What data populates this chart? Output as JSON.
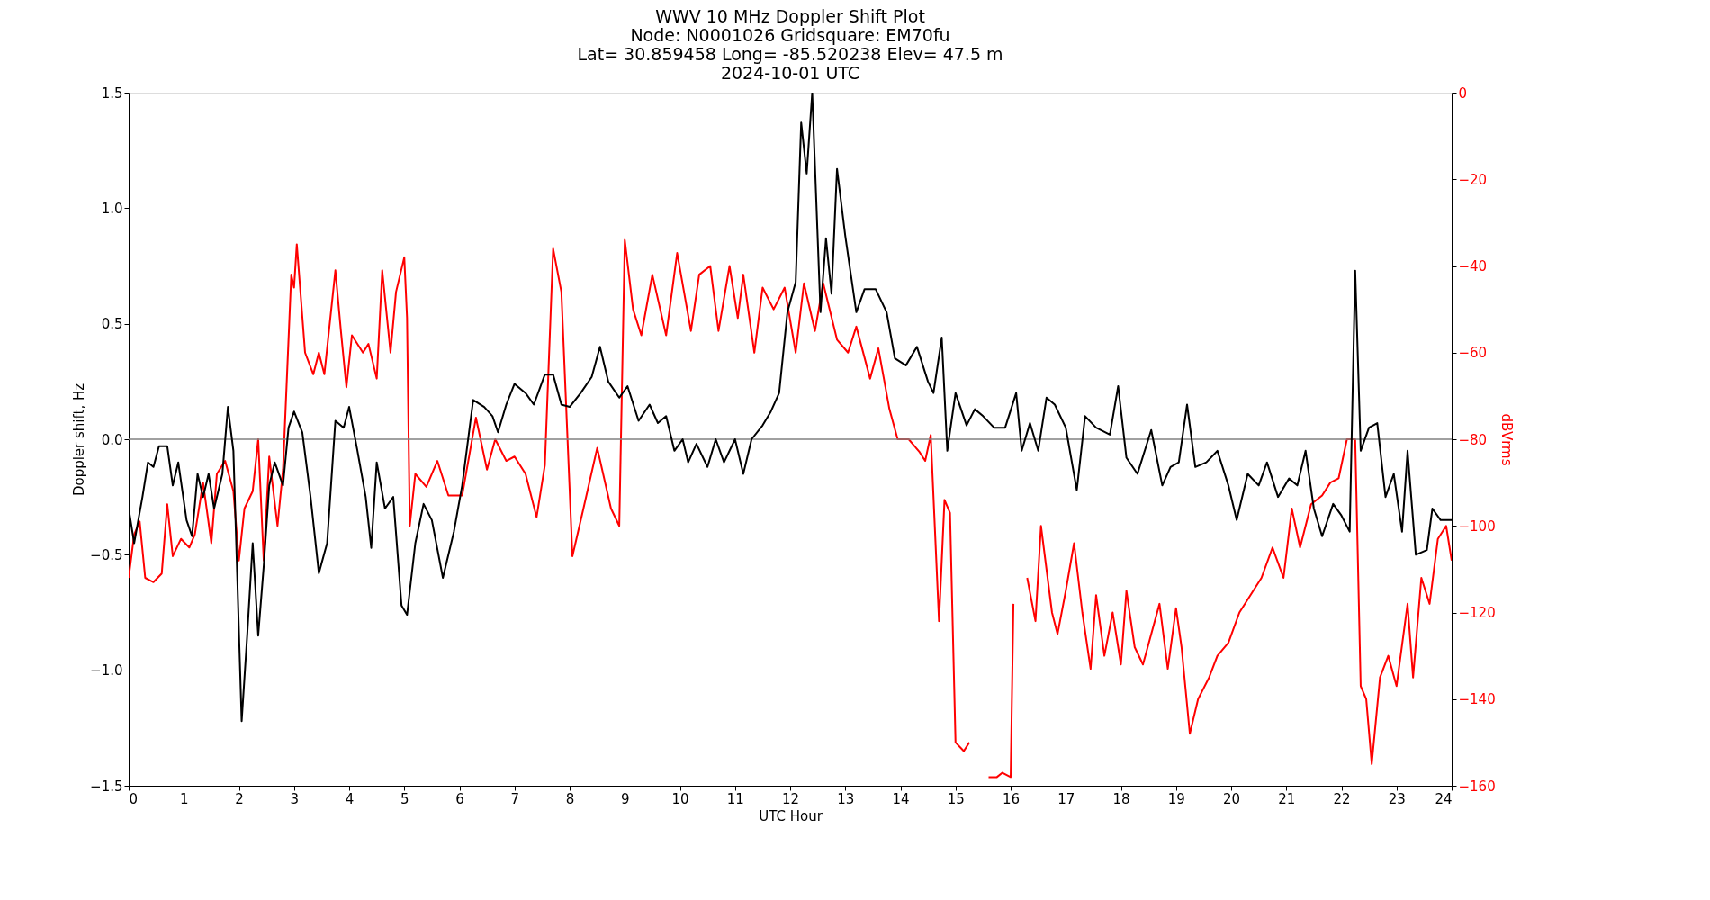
{
  "chart_data": {
    "type": "line",
    "title": "WWV 10 MHz Doppler Shift Plot\nNode:  N0001026     Gridsquare:  EM70fu\nLat= 30.859458    Long= -85.520238    Elev= 47.5 m\n2024-10-01  UTC",
    "xlabel": "UTC Hour",
    "ylabel": "Doppler shift, Hz",
    "y2label": "dBVrms",
    "xlim": [
      0,
      24
    ],
    "xticks": [
      0,
      1,
      2,
      3,
      4,
      5,
      6,
      7,
      8,
      9,
      10,
      11,
      12,
      13,
      14,
      15,
      16,
      17,
      18,
      19,
      20,
      21,
      22,
      23,
      24
    ],
    "ylim": [
      -1.5,
      1.5
    ],
    "yticks": [
      {
        "value": -1.5,
        "label": "−1.5"
      },
      {
        "value": -1.0,
        "label": "−1.0"
      },
      {
        "value": -0.5,
        "label": "−0.5"
      },
      {
        "value": 0,
        "label": "0.0"
      },
      {
        "value": 0.5,
        "label": "0.5"
      },
      {
        "value": 1.0,
        "label": "1.0"
      },
      {
        "value": 1.5,
        "label": "1.5"
      }
    ],
    "y2lim": [
      -160,
      0
    ],
    "y2ticks": [
      {
        "value": -160,
        "label": "−160"
      },
      {
        "value": -140,
        "label": "−140"
      },
      {
        "value": -120,
        "label": "−120"
      },
      {
        "value": -100,
        "label": "−100"
      },
      {
        "value": -80,
        "label": "−80"
      },
      {
        "value": -60,
        "label": "−60"
      },
      {
        "value": -40,
        "label": "−40"
      },
      {
        "value": -20,
        "label": "−20"
      },
      0
    ],
    "grid": false,
    "ref_lines": [
      {
        "axis": "y",
        "value": 0,
        "color": "#808080"
      }
    ],
    "series": [
      {
        "color": "#ff0000",
        "axis": "y2",
        "x": [
          0,
          0.1,
          0.2,
          0.3,
          0.45,
          0.6,
          0.7,
          0.8,
          0.95,
          1.1,
          1.2,
          1.35,
          1.5,
          1.6,
          1.75,
          1.9,
          2.0,
          2.1,
          2.25,
          2.35,
          2.45,
          2.55,
          2.7,
          2.8,
          2.95,
          3.0,
          3.05,
          3.2,
          3.35,
          3.45,
          3.55,
          3.75,
          3.85,
          3.95,
          4.05,
          4.25,
          4.35,
          4.5,
          4.6,
          4.75,
          4.85,
          5.0,
          5.05,
          5.1,
          5.2,
          5.4,
          5.6,
          5.8,
          6.05,
          6.3,
          6.5,
          6.65,
          6.85,
          7.0,
          7.2,
          7.4,
          7.55,
          7.7,
          7.85,
          8.05,
          8.25,
          8.5,
          8.75,
          8.9,
          9.0,
          9.15,
          9.3,
          9.5,
          9.75,
          9.95,
          10.2,
          10.35,
          10.55,
          10.7,
          10.9,
          11.05,
          11.15,
          11.35,
          11.5,
          11.7,
          11.9,
          12.1,
          12.25,
          12.45,
          12.6,
          12.85,
          13.05,
          13.2,
          13.45,
          13.6,
          13.8,
          13.95,
          14.15,
          14.35,
          14.45,
          14.55,
          14.7,
          14.8,
          14.9,
          15.0,
          15.15,
          15.25,
          15.35,
          15.6,
          15.75,
          15.85,
          16.0,
          16.05,
          16.15,
          16.3,
          16.45,
          16.55,
          16.75,
          16.85,
          17.0,
          17.15,
          17.3,
          17.45,
          17.55,
          17.7,
          17.85,
          18.0,
          18.1,
          18.25,
          18.4,
          18.55,
          18.7,
          18.85,
          19.0,
          19.1,
          19.25,
          19.4,
          19.6,
          19.75,
          19.95,
          20.15,
          20.35,
          20.55,
          20.75,
          20.95,
          21.1,
          21.25,
          21.45,
          21.65,
          21.8,
          21.95,
          22.1,
          22.25,
          22.35,
          22.45,
          22.55,
          22.7,
          22.85,
          23.0,
          23.2,
          23.3,
          23.45,
          23.6,
          23.75,
          23.9,
          24.0
        ],
        "values": [
          -112,
          -102,
          -99,
          -112,
          -113,
          -111,
          -95,
          -107,
          -103,
          -105,
          -102,
          -90,
          -104,
          -88,
          -85,
          -92,
          -108,
          -96,
          -92,
          -80,
          -108,
          -84,
          -100,
          -87,
          -42,
          -45,
          -35,
          -60,
          -65,
          -60,
          -65,
          -41,
          -55,
          -68,
          -56,
          -60,
          -58,
          -66,
          -41,
          -60,
          -46,
          -38,
          -52,
          -100,
          -88,
          -91,
          -85,
          -93,
          -93,
          -75,
          -87,
          -80,
          -85,
          -84,
          -88,
          -98,
          -86,
          -36,
          -46,
          -107,
          -96,
          -82,
          -96,
          -100,
          -34,
          -50,
          -56,
          -42,
          -56,
          -37,
          -55,
          -42,
          -40,
          -55,
          -40,
          -52,
          -42,
          -60,
          -45,
          -50,
          -45,
          -60,
          -44,
          -55,
          -44,
          -57,
          -60,
          -54,
          -66,
          -59,
          -73,
          -80,
          -80,
          -83,
          -85,
          -79,
          -122,
          -94,
          -97,
          -150,
          -152,
          -150,
          null,
          -158,
          -158,
          -157,
          -158,
          -118,
          null,
          -112,
          -122,
          -100,
          -120,
          -125,
          -115,
          -104,
          -120,
          -133,
          -116,
          -130,
          -120,
          -132,
          -115,
          -128,
          -132,
          -125,
          -118,
          -133,
          -119,
          -128,
          -148,
          -140,
          -135,
          -130,
          -127,
          -120,
          -116,
          -112,
          -105,
          -112,
          -96,
          -105,
          -95,
          -93,
          -90,
          -89,
          -80,
          -80,
          -137,
          -140,
          -155,
          -135,
          -130,
          -137,
          -118,
          -135,
          -112,
          -118,
          -103,
          -100,
          -108
        ]
      },
      {
        "color": "#000000",
        "x": [
          0,
          0.1,
          0.25,
          0.35,
          0.45,
          0.55,
          0.7,
          0.8,
          0.9,
          1.05,
          1.15,
          1.25,
          1.35,
          1.45,
          1.55,
          1.7,
          1.8,
          1.9,
          2.05,
          2.15,
          2.25,
          2.35,
          2.45,
          2.55,
          2.65,
          2.8,
          2.9,
          3.0,
          3.15,
          3.3,
          3.45,
          3.6,
          3.75,
          3.9,
          4.0,
          4.15,
          4.3,
          4.4,
          4.5,
          4.65,
          4.8,
          4.95,
          5.05,
          5.2,
          5.35,
          5.5,
          5.7,
          5.9,
          6.05,
          6.25,
          6.45,
          6.6,
          6.7,
          6.85,
          7.0,
          7.2,
          7.35,
          7.55,
          7.7,
          7.85,
          8.0,
          8.2,
          8.4,
          8.55,
          8.7,
          8.9,
          9.05,
          9.25,
          9.45,
          9.6,
          9.75,
          9.9,
          10.05,
          10.15,
          10.3,
          10.5,
          10.65,
          10.8,
          11.0,
          11.15,
          11.3,
          11.5,
          11.65,
          11.8,
          11.95,
          12.1,
          12.2,
          12.3,
          12.4,
          12.55,
          12.65,
          12.75,
          12.85,
          13.0,
          13.2,
          13.35,
          13.55,
          13.75,
          13.9,
          14.1,
          14.3,
          14.5,
          14.6,
          14.75,
          14.85,
          15.0,
          15.2,
          15.35,
          15.5,
          15.7,
          15.9,
          16.1,
          16.2,
          16.35,
          16.5,
          16.65,
          16.8,
          17.0,
          17.2,
          17.35,
          17.55,
          17.8,
          17.95,
          18.1,
          18.3,
          18.55,
          18.75,
          18.9,
          19.05,
          19.2,
          19.35,
          19.55,
          19.75,
          19.95,
          20.1,
          20.3,
          20.5,
          20.65,
          20.85,
          21.05,
          21.2,
          21.35,
          21.5,
          21.65,
          21.85,
          22.0,
          22.15,
          22.25,
          22.35,
          22.5,
          22.65,
          22.8,
          22.95,
          23.1,
          23.2,
          23.35,
          23.55,
          23.65,
          23.8,
          24.0
        ],
        "values": [
          -0.3,
          -0.45,
          -0.25,
          -0.1,
          -0.12,
          -0.03,
          -0.03,
          -0.2,
          -0.1,
          -0.35,
          -0.42,
          -0.15,
          -0.25,
          -0.15,
          -0.3,
          -0.15,
          0.14,
          -0.05,
          -1.22,
          -0.85,
          -0.45,
          -0.85,
          -0.55,
          -0.2,
          -0.1,
          -0.2,
          0.05,
          0.12,
          0.03,
          -0.25,
          -0.58,
          -0.45,
          0.08,
          0.05,
          0.14,
          -0.05,
          -0.25,
          -0.47,
          -0.1,
          -0.3,
          -0.25,
          -0.72,
          -0.76,
          -0.45,
          -0.28,
          -0.35,
          -0.6,
          -0.4,
          -0.2,
          0.17,
          0.14,
          0.1,
          0.03,
          0.15,
          0.24,
          0.2,
          0.15,
          0.28,
          0.28,
          0.15,
          0.14,
          0.2,
          0.27,
          0.4,
          0.25,
          0.18,
          0.23,
          0.08,
          0.15,
          0.07,
          0.1,
          -0.05,
          0.0,
          -0.1,
          -0.02,
          -0.12,
          0.0,
          -0.1,
          0.0,
          -0.15,
          0.0,
          0.06,
          0.12,
          0.2,
          0.55,
          0.68,
          1.37,
          1.15,
          1.5,
          0.55,
          0.87,
          0.63,
          1.17,
          0.88,
          0.55,
          0.65,
          0.65,
          0.55,
          0.35,
          0.32,
          0.4,
          0.25,
          0.2,
          0.44,
          -0.05,
          0.2,
          0.06,
          0.13,
          0.1,
          0.05,
          0.05,
          0.2,
          -0.05,
          0.07,
          -0.05,
          0.18,
          0.15,
          0.05,
          -0.22,
          0.1,
          0.05,
          0.02,
          0.23,
          -0.08,
          -0.15,
          0.04,
          -0.2,
          -0.12,
          -0.1,
          0.15,
          -0.12,
          -0.1,
          -0.05,
          -0.2,
          -0.35,
          -0.15,
          -0.2,
          -0.1,
          -0.25,
          -0.17,
          -0.2,
          -0.05,
          -0.3,
          -0.42,
          -0.28,
          -0.33,
          -0.4,
          0.73,
          -0.05,
          0.05,
          0.07,
          -0.25,
          -0.15,
          -0.4,
          -0.05,
          -0.5,
          -0.48,
          -0.3,
          -0.35,
          -0.35
        ]
      }
    ]
  }
}
